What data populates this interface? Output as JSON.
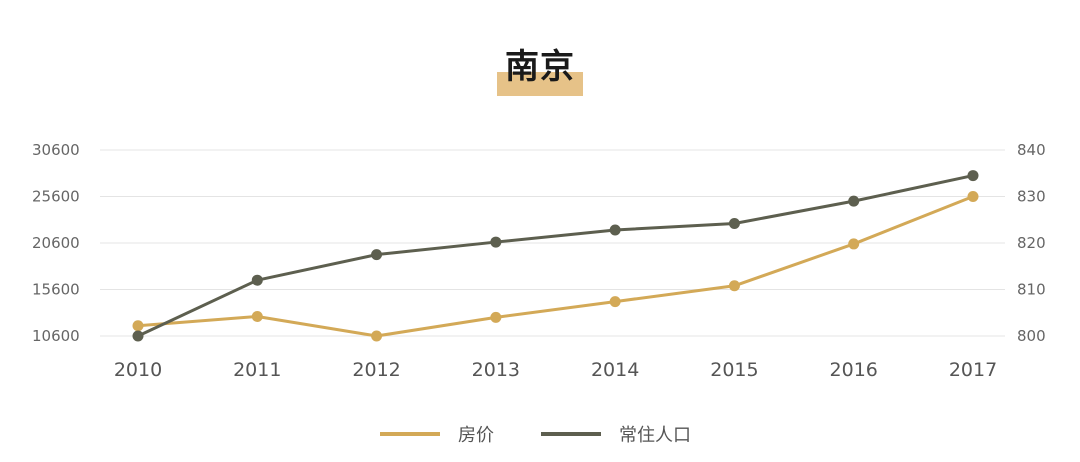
{
  "title": "南京",
  "colors": {
    "price": "#d3a957",
    "population": "#5d5f4f",
    "grid": "#e4e4e4",
    "title_highlight": "#e6c288"
  },
  "chart_data": {
    "type": "line",
    "title": "南京",
    "categories": [
      "2010",
      "2011",
      "2012",
      "2013",
      "2014",
      "2015",
      "2016",
      "2017"
    ],
    "y_left": {
      "ticks": [
        10600,
        15600,
        20600,
        25600,
        30600
      ],
      "range": [
        10600,
        30600
      ]
    },
    "y_right": {
      "ticks": [
        800,
        810,
        820,
        830,
        840
      ],
      "range": [
        800,
        840
      ]
    },
    "series": [
      {
        "name": "房价",
        "axis": "left",
        "color": "#d3a957",
        "values": [
          11700,
          12700,
          10600,
          12600,
          14300,
          16000,
          20500,
          25600
        ]
      },
      {
        "name": "常住人口",
        "axis": "right",
        "color": "#5d5f4f",
        "values": [
          800,
          812,
          817.5,
          820.2,
          822.8,
          824.2,
          829,
          834.5
        ]
      }
    ],
    "grid": true,
    "legend": "bottom-center"
  }
}
